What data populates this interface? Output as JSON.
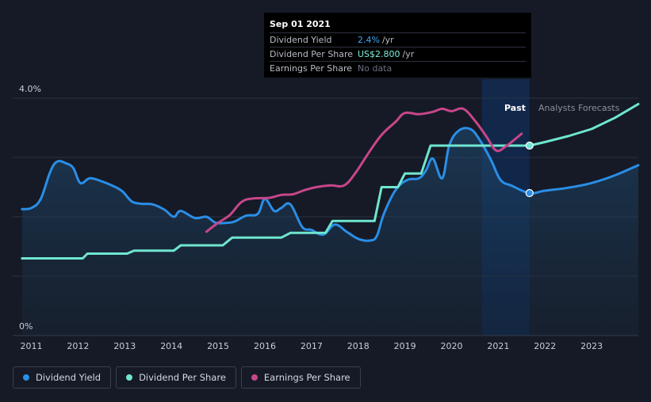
{
  "tooltip": {
    "date": "Sep 01 2021",
    "rows": [
      {
        "label": "Dividend Yield",
        "value": "2.4%",
        "unit": "/yr"
      },
      {
        "label": "Dividend Per Share",
        "value": "US$2.800",
        "unit": "/yr"
      },
      {
        "label": "Earnings Per Share",
        "value": "No data",
        "unit": ""
      }
    ]
  },
  "legend": [
    {
      "label": "Dividend Yield",
      "color": "#2a8ee6"
    },
    {
      "label": "Dividend Per Share",
      "color": "#6fe6cf"
    },
    {
      "label": "Earnings Per Share",
      "color": "#c7468a"
    }
  ],
  "chart_data": {
    "type": "line",
    "y_axis_labels": {
      "top": "4.0%",
      "bottom": "0%"
    },
    "ylim": [
      0,
      4.0
    ],
    "xlim": [
      2010.6,
      2024.0
    ],
    "x_ticks": [
      "2011",
      "2012",
      "2013",
      "2014",
      "2015",
      "2016",
      "2017",
      "2018",
      "2019",
      "2020",
      "2021",
      "2022",
      "2023"
    ],
    "grid": true,
    "region_labels": {
      "past": "Past",
      "forecast": "Analysts Forecasts"
    },
    "past_end": 2021.67,
    "highlight_start": 2020.65,
    "series": [
      {
        "name": "Dividend Yield",
        "color": "#2a8ee6",
        "points": [
          [
            2010.8,
            2.13
          ],
          [
            2011.0,
            2.15
          ],
          [
            2011.2,
            2.3
          ],
          [
            2011.4,
            2.75
          ],
          [
            2011.55,
            2.93
          ],
          [
            2011.75,
            2.9
          ],
          [
            2011.9,
            2.82
          ],
          [
            2012.05,
            2.57
          ],
          [
            2012.25,
            2.65
          ],
          [
            2012.5,
            2.6
          ],
          [
            2012.75,
            2.52
          ],
          [
            2012.95,
            2.43
          ],
          [
            2013.15,
            2.26
          ],
          [
            2013.35,
            2.22
          ],
          [
            2013.6,
            2.21
          ],
          [
            2013.85,
            2.12
          ],
          [
            2014.05,
            2.0
          ],
          [
            2014.2,
            2.1
          ],
          [
            2014.5,
            1.98
          ],
          [
            2014.75,
            2.0
          ],
          [
            2014.95,
            1.9
          ],
          [
            2015.2,
            1.9
          ],
          [
            2015.35,
            1.92
          ],
          [
            2015.6,
            2.02
          ],
          [
            2015.85,
            2.05
          ],
          [
            2016.0,
            2.3
          ],
          [
            2016.2,
            2.1
          ],
          [
            2016.35,
            2.15
          ],
          [
            2016.55,
            2.21
          ],
          [
            2016.8,
            1.83
          ],
          [
            2017.0,
            1.78
          ],
          [
            2017.25,
            1.7
          ],
          [
            2017.5,
            1.87
          ],
          [
            2017.75,
            1.75
          ],
          [
            2018.0,
            1.63
          ],
          [
            2018.25,
            1.6
          ],
          [
            2018.4,
            1.68
          ],
          [
            2018.55,
            2.05
          ],
          [
            2018.8,
            2.45
          ],
          [
            2019.05,
            2.62
          ],
          [
            2019.3,
            2.65
          ],
          [
            2019.45,
            2.78
          ],
          [
            2019.6,
            2.98
          ],
          [
            2019.8,
            2.65
          ],
          [
            2019.95,
            3.2
          ],
          [
            2020.15,
            3.45
          ],
          [
            2020.4,
            3.48
          ],
          [
            2020.6,
            3.3
          ],
          [
            2020.85,
            2.95
          ],
          [
            2021.05,
            2.62
          ],
          [
            2021.3,
            2.52
          ],
          [
            2021.67,
            2.4
          ],
          [
            2022.0,
            2.44
          ],
          [
            2022.5,
            2.49
          ],
          [
            2023.0,
            2.57
          ],
          [
            2023.5,
            2.7
          ],
          [
            2024.0,
            2.87
          ]
        ]
      },
      {
        "name": "Dividend Per Share",
        "color": "#6fe6cf",
        "points": [
          [
            2010.8,
            1.3
          ],
          [
            2012.1,
            1.3
          ],
          [
            2012.2,
            1.38
          ],
          [
            2013.05,
            1.38
          ],
          [
            2013.2,
            1.43
          ],
          [
            2014.05,
            1.43
          ],
          [
            2014.2,
            1.52
          ],
          [
            2015.1,
            1.52
          ],
          [
            2015.3,
            1.65
          ],
          [
            2016.35,
            1.65
          ],
          [
            2016.55,
            1.73
          ],
          [
            2017.3,
            1.73
          ],
          [
            2017.45,
            1.93
          ],
          [
            2018.35,
            1.93
          ],
          [
            2018.5,
            2.5
          ],
          [
            2018.85,
            2.5
          ],
          [
            2019.0,
            2.73
          ],
          [
            2019.35,
            2.73
          ],
          [
            2019.55,
            3.2
          ],
          [
            2021.67,
            3.2
          ],
          [
            2022.0,
            3.26
          ],
          [
            2022.5,
            3.36
          ],
          [
            2023.0,
            3.48
          ],
          [
            2023.5,
            3.67
          ],
          [
            2024.0,
            3.9
          ]
        ]
      },
      {
        "name": "Earnings Per Share",
        "color": "#c7468a",
        "points": [
          [
            2014.75,
            1.75
          ],
          [
            2015.0,
            1.9
          ],
          [
            2015.25,
            2.03
          ],
          [
            2015.5,
            2.25
          ],
          [
            2015.75,
            2.31
          ],
          [
            2016.1,
            2.32
          ],
          [
            2016.35,
            2.37
          ],
          [
            2016.6,
            2.38
          ],
          [
            2016.85,
            2.45
          ],
          [
            2017.1,
            2.5
          ],
          [
            2017.4,
            2.53
          ],
          [
            2017.7,
            2.53
          ],
          [
            2017.95,
            2.75
          ],
          [
            2018.2,
            3.05
          ],
          [
            2018.5,
            3.38
          ],
          [
            2018.8,
            3.6
          ],
          [
            2019.0,
            3.75
          ],
          [
            2019.3,
            3.73
          ],
          [
            2019.6,
            3.77
          ],
          [
            2019.8,
            3.82
          ],
          [
            2020.0,
            3.78
          ],
          [
            2020.25,
            3.82
          ],
          [
            2020.5,
            3.62
          ],
          [
            2020.75,
            3.35
          ],
          [
            2020.95,
            3.12
          ],
          [
            2021.15,
            3.18
          ],
          [
            2021.5,
            3.4
          ]
        ]
      }
    ],
    "markers": [
      {
        "series": "Dividend Yield",
        "x": 2021.67,
        "y": 2.4
      },
      {
        "series": "Dividend Per Share",
        "x": 2021.67,
        "y": 3.2
      }
    ]
  }
}
